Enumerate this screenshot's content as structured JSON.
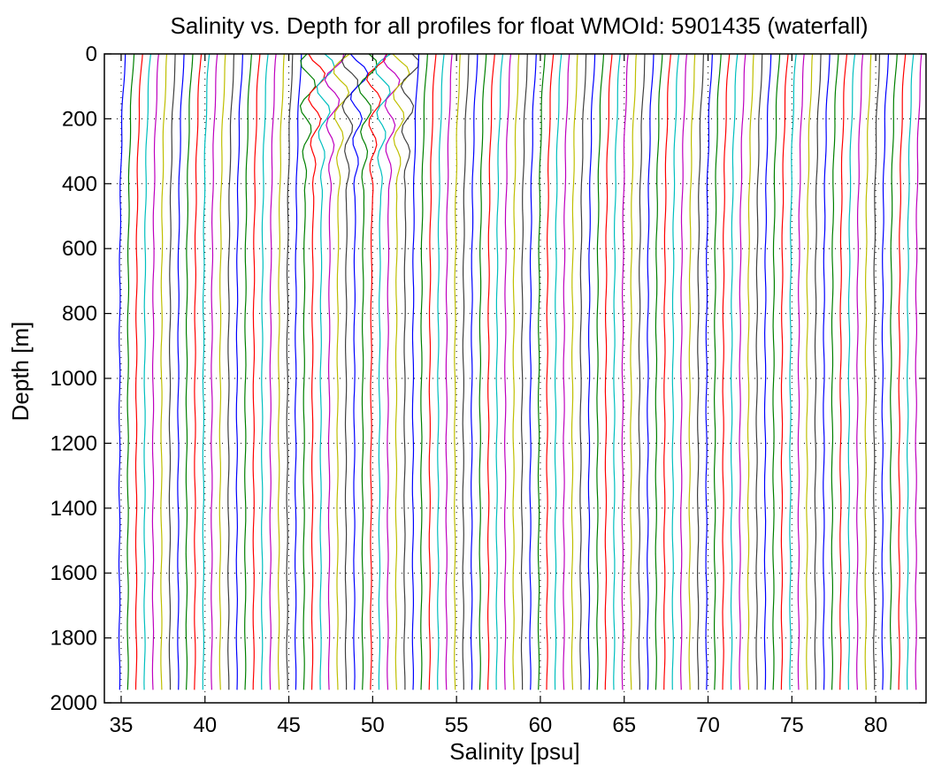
{
  "chart_data": {
    "type": "line",
    "title": "Salinity vs. Depth for all profiles for float WMOId: 5901435 (waterfall)",
    "xlabel": "Salinity [psu]",
    "ylabel": "Depth [m]",
    "xlim": [
      34,
      83
    ],
    "ylim": [
      0,
      2000
    ],
    "y_reversed": true,
    "x_ticks": [
      35,
      40,
      45,
      50,
      55,
      60,
      65,
      70,
      75,
      80
    ],
    "y_ticks": [
      0,
      200,
      400,
      600,
      800,
      1000,
      1200,
      1400,
      1600,
      1800,
      2000
    ],
    "grid": "dotted",
    "waterfall": {
      "profile_count": 96,
      "first_profile_salinity_at_depth": 34.9,
      "offset_per_profile_psu": 0.5,
      "surface_salinity_excess_psu": 0.35,
      "profile_max_depth_m": 1970
    },
    "colors": [
      "#0000ff",
      "#008000",
      "#ff0000",
      "#00bfbf",
      "#bf00bf",
      "#bfbf00",
      "#404040"
    ]
  }
}
